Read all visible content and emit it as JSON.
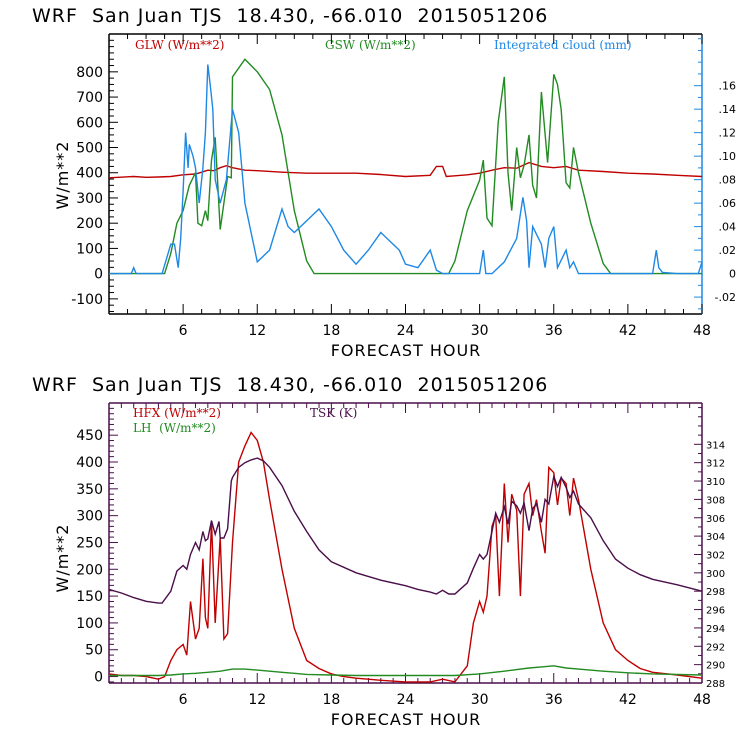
{
  "chart_data": [
    {
      "type": "line",
      "title": "WRF  San Juan TJS  18.430, -66.010  2015051206",
      "xlabel": "FORECAST HOUR",
      "ylabel": "W/m**2",
      "xlim": [
        0,
        48
      ],
      "ylim": [
        -160,
        950
      ],
      "xticks": [
        6,
        12,
        18,
        24,
        30,
        36,
        42,
        48
      ],
      "yticks": [
        -100,
        0,
        100,
        200,
        300,
        400,
        500,
        600,
        700,
        800
      ],
      "y2label": "Integrated cloud (mm)",
      "y2lim": [
        -0.0344,
        0.204
      ],
      "y2ticks": [
        -0.02,
        0,
        0.02,
        0.04,
        0.06,
        0.08,
        0.1,
        0.12,
        0.14,
        0.16
      ],
      "y2ticklabels": [
        "-.02",
        "0",
        ".02",
        ".04",
        ".06",
        ".08",
        ".10",
        ".12",
        ".14",
        ".16"
      ],
      "legend": [
        {
          "name": "GLW (W/m**2)",
          "color": "#c00000",
          "axis": "left",
          "placement": "top-left"
        },
        {
          "name": "GSW (W/m**2)",
          "color": "#228b22",
          "axis": "left",
          "placement": "top-center"
        },
        {
          "name": "Integrated cloud (mm)",
          "color": "#1e88e5",
          "axis": "right",
          "placement": "top-right"
        }
      ],
      "series": [
        {
          "name": "GLW (W/m**2)",
          "color": "#c00000",
          "axis": "left",
          "x": [
            0,
            2,
            3,
            4,
            5,
            6,
            7,
            7.5,
            8,
            8.5,
            9,
            9.5,
            10,
            11,
            12,
            14,
            16,
            18,
            20,
            22,
            24,
            26,
            26.5,
            27,
            27.3,
            28,
            29,
            30,
            31,
            32,
            33,
            34,
            35,
            36,
            37,
            38,
            40,
            42,
            44,
            46,
            48
          ],
          "y": [
            380,
            385,
            382,
            383,
            385,
            392,
            395,
            402,
            410,
            408,
            420,
            428,
            420,
            410,
            408,
            402,
            398,
            398,
            398,
            393,
            385,
            390,
            425,
            425,
            385,
            388,
            392,
            398,
            410,
            420,
            418,
            440,
            425,
            420,
            425,
            410,
            405,
            398,
            395,
            390,
            385
          ]
        },
        {
          "name": "GSW (W/m**2)",
          "color": "#228b22",
          "axis": "left",
          "x": [
            0,
            4.5,
            5,
            5.5,
            6,
            6.5,
            7,
            7.2,
            7.5,
            7.8,
            8,
            8.3,
            8.6,
            9,
            9.3,
            9.6,
            9.9,
            10,
            11,
            12,
            13,
            14,
            15,
            16,
            16.6,
            20,
            24,
            27.5,
            28,
            29,
            30,
            30.3,
            30.6,
            31,
            31.5,
            32,
            32.3,
            32.6,
            33,
            33.3,
            33.6,
            34,
            34.3,
            34.6,
            35,
            35.5,
            36,
            36.3,
            36.6,
            37,
            37.3,
            37.6,
            38,
            39,
            40,
            40.6,
            48
          ],
          "y": [
            0,
            0,
            80,
            200,
            250,
            350,
            400,
            200,
            190,
            250,
            210,
            450,
            540,
            175,
            280,
            385,
            380,
            780,
            850,
            800,
            730,
            550,
            250,
            50,
            0,
            0,
            0,
            0,
            50,
            250,
            370,
            450,
            220,
            190,
            600,
            780,
            400,
            250,
            500,
            380,
            430,
            550,
            350,
            300,
            720,
            440,
            790,
            750,
            650,
            360,
            340,
            500,
            400,
            200,
            40,
            0,
            0
          ]
        },
        {
          "name": "Integrated cloud (mm)",
          "color": "#1e88e5",
          "axis": "right",
          "x": [
            0,
            1.8,
            2,
            2.2,
            4.3,
            5,
            5.3,
            5.6,
            5.8,
            6,
            6.2,
            6.4,
            6.5,
            6.8,
            7,
            7.3,
            7.6,
            7.8,
            8,
            8.2,
            8.4,
            8.6,
            9,
            9.5,
            10,
            10.5,
            11,
            12,
            13,
            14,
            14.5,
            15,
            16,
            16.5,
            17,
            18,
            19,
            20,
            21,
            22,
            23,
            23.5,
            24,
            25,
            26,
            26.5,
            27,
            27.3,
            30,
            30.3,
            30.5,
            31,
            32,
            33,
            33.5,
            33.8,
            34,
            34.3,
            35,
            35.3,
            35.6,
            36,
            36.3,
            37,
            37.3,
            37.6,
            38,
            40,
            44,
            44.3,
            44.5,
            44.8,
            46,
            47.7,
            48
          ],
          "y": [
            0,
            0,
            0.005,
            0,
            0,
            0.025,
            0.025,
            0.005,
            0.03,
            0.07,
            0.12,
            0.09,
            0.11,
            0.1,
            0.09,
            0.06,
            0.09,
            0.12,
            0.178,
            0.16,
            0.14,
            0.08,
            0.06,
            0.08,
            0.14,
            0.12,
            0.06,
            0.01,
            0.02,
            0.055,
            0.04,
            0.035,
            0.045,
            0.05,
            0.055,
            0.04,
            0.02,
            0.008,
            0.02,
            0.035,
            0.025,
            0.02,
            0.008,
            0.005,
            0.02,
            0.003,
            0,
            0,
            0,
            0.02,
            0,
            0,
            0.01,
            0.03,
            0.065,
            0.045,
            0.005,
            0.04,
            0.025,
            0.005,
            0.03,
            0.04,
            0.005,
            0.02,
            0.005,
            0.01,
            0,
            0,
            0,
            0.02,
            0.005,
            0.001,
            0,
            0,
            0.01
          ]
        }
      ]
    },
    {
      "type": "line",
      "title": "WRF  San Juan TJS  18.430, -66.010  2015051206",
      "xlabel": "FORECAST HOUR",
      "ylabel": "W/m**2",
      "xlim": [
        0,
        48
      ],
      "ylim": [
        -12,
        510
      ],
      "xticks": [
        6,
        12,
        18,
        24,
        30,
        36,
        42,
        48
      ],
      "yticks": [
        0,
        50,
        100,
        150,
        200,
        250,
        300,
        350,
        400,
        450
      ],
      "y2label": "TSK (K)",
      "y2lim": [
        288,
        318.5
      ],
      "y2ticks": [
        288,
        290,
        292,
        294,
        296,
        298,
        300,
        302,
        304,
        306,
        308,
        310,
        312,
        314
      ],
      "y2ticklabels": [
        "288",
        "290",
        "292",
        "294",
        "296",
        "298",
        "300",
        "302",
        "304",
        "306",
        "308",
        "310",
        "312",
        "314"
      ],
      "legend": [
        {
          "name": "HFX (W/m**2)",
          "color": "#c00000",
          "axis": "left",
          "placement": "top-left"
        },
        {
          "name": "LH  (W/m**2)",
          "color": "#228b22",
          "axis": "left",
          "placement": "top-left"
        },
        {
          "name": "TSK (K)",
          "color": "#4a0f4a",
          "axis": "right",
          "placement": "top-center"
        }
      ],
      "series": [
        {
          "name": "HFX (W/m**2)",
          "color": "#c00000",
          "axis": "left",
          "x": [
            0,
            1,
            2,
            3,
            4,
            4.5,
            5,
            5.5,
            6,
            6.3,
            6.6,
            7,
            7.3,
            7.6,
            7.8,
            8,
            8.3,
            8.6,
            9,
            9.3,
            9.6,
            10,
            10.5,
            11,
            11.5,
            12,
            12.5,
            13,
            14,
            15,
            16,
            17,
            18,
            19,
            20,
            21,
            22,
            24,
            26,
            27,
            28,
            29,
            29.5,
            30,
            30.3,
            30.6,
            31,
            31.3,
            31.6,
            32,
            32.3,
            32.6,
            33,
            33.3,
            33.6,
            34,
            34.3,
            34.6,
            35,
            35.3,
            35.6,
            36,
            36.3,
            36.6,
            37,
            37.3,
            37.6,
            38,
            39,
            40,
            41,
            42,
            43,
            44,
            46,
            48
          ],
          "y": [
            5,
            2,
            2,
            0,
            -5,
            0,
            30,
            50,
            60,
            40,
            140,
            70,
            90,
            220,
            110,
            90,
            290,
            100,
            260,
            70,
            80,
            250,
            400,
            430,
            455,
            440,
            400,
            330,
            200,
            90,
            30,
            15,
            5,
            0,
            -3,
            -5,
            -7,
            -10,
            -10,
            -5,
            -10,
            20,
            100,
            140,
            120,
            150,
            280,
            300,
            150,
            360,
            250,
            340,
            310,
            150,
            340,
            360,
            300,
            330,
            270,
            230,
            390,
            380,
            320,
            370,
            360,
            300,
            370,
            330,
            200,
            100,
            50,
            30,
            15,
            8,
            3,
            -3
          ]
        },
        {
          "name": "LH  (W/m**2)",
          "color": "#228b22",
          "axis": "left",
          "x": [
            0,
            2,
            4,
            5,
            6,
            7,
            8,
            9,
            10,
            11,
            12,
            13,
            14,
            15,
            16,
            18,
            20,
            24,
            28,
            30,
            32,
            34,
            35,
            36,
            37,
            38,
            40,
            42,
            44,
            46,
            48
          ],
          "y": [
            2,
            2,
            2,
            3,
            5,
            6,
            8,
            10,
            14,
            14,
            12,
            10,
            8,
            6,
            4,
            3,
            2,
            2,
            2,
            5,
            10,
            16,
            18,
            20,
            16,
            14,
            10,
            7,
            5,
            4,
            3
          ]
        },
        {
          "name": "TSK (K)",
          "color": "#4a0f4a",
          "axis": "right",
          "x": [
            0,
            1,
            2,
            3,
            4,
            4.3,
            5,
            5.5,
            6,
            6.3,
            6.6,
            7,
            7.3,
            7.6,
            7.8,
            8,
            8.3,
            8.6,
            8.9,
            9,
            9.3,
            9.6,
            9.9,
            10,
            10.5,
            11,
            11.5,
            12,
            12.5,
            13,
            14,
            15,
            16,
            17,
            18,
            20,
            22,
            24,
            25,
            26,
            26.5,
            27,
            27.5,
            28,
            29,
            29.5,
            30,
            30.3,
            30.6,
            31,
            31.3,
            31.6,
            32,
            32.3,
            32.6,
            33,
            33.3,
            33.6,
            34,
            34.3,
            34.6,
            35,
            35.3,
            35.6,
            36,
            36.3,
            36.6,
            37,
            37.3,
            37.6,
            38,
            39,
            40,
            41,
            42,
            43,
            44,
            46,
            48
          ],
          "y": [
            298.2,
            297.8,
            297.3,
            296.9,
            296.7,
            296.7,
            298,
            300.2,
            300.8,
            300.4,
            302,
            303.3,
            302.5,
            304.5,
            303.5,
            303.7,
            305.7,
            304.2,
            305.6,
            303.8,
            303.8,
            304.8,
            310,
            310.4,
            311.5,
            312,
            312.3,
            312.5,
            312.2,
            311.5,
            309.5,
            306.7,
            304.5,
            302.5,
            301.2,
            300,
            299.2,
            298.6,
            298.2,
            297.9,
            297.7,
            298.1,
            297.7,
            297.7,
            298.9,
            300.5,
            302,
            301.5,
            302,
            304.5,
            306.5,
            305.5,
            307.2,
            305.3,
            307.8,
            307.3,
            306.5,
            307.6,
            304.6,
            307,
            307.5,
            305.5,
            308,
            307.5,
            310.5,
            309.4,
            310.4,
            309.3,
            308.2,
            308.9,
            307.5,
            306,
            303.5,
            301.5,
            300.5,
            299.8,
            299.3,
            298.7,
            298
          ]
        }
      ]
    }
  ],
  "panels": [
    {
      "title": "WRF  San Juan TJS  18.430, -66.010  2015051206",
      "xlabel": "FORECAST HOUR",
      "ylabel": "W/m**2",
      "legend": [
        "GLW (W/m**2)",
        "GSW (W/m**2)",
        "Integrated cloud (mm)"
      ]
    },
    {
      "title": "WRF  San Juan TJS  18.430, -66.010  2015051206",
      "xlabel": "FORECAST HOUR",
      "ylabel": "W/m**2",
      "legend": [
        "HFX (W/m**2)",
        "LH  (W/m**2)",
        "TSK (K)"
      ]
    }
  ]
}
